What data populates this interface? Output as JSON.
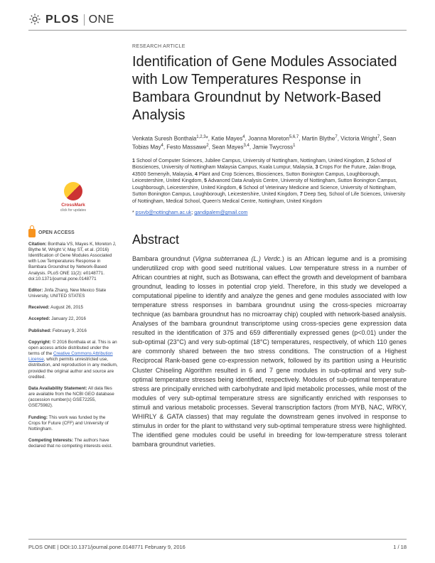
{
  "header": {
    "logo_prefix": "PLOS",
    "logo_suffix": "ONE"
  },
  "article_type": "RESEARCH ARTICLE",
  "title": "Identification of Gene Modules Associated with Low Temperatures Response in Bambara Groundnut by Network-Based Analysis",
  "authors_html": "Venkata Suresh Bonthala<sup>1,2,3</sup>*, Katie Mayes<sup>4</sup>, Joanna Moreton<sup>5,6,7</sup>, Martin Blythe<sup>7</sup>, Victoria Wright<sup>7</sup>, Sean Tobias May<sup>4</sup>, Festo Massawe<sup>2</sup>, Sean Mayes<sup>3,4</sup>, Jamie Twycross<sup>1</sup>",
  "affiliations_html": "<b>1</b> School of Computer Sciences, Jubilee Campus, University of Nottingham, Nottingham, United Kingdom, <b>2</b> School of Biosciences, University of Nottingham Malaysia Campus, Kuala Lumpur, Malaysia, <b>3</b> Crops For the Future, Jalan Broga, 43500 Semenyih, Malaysia, <b>4</b> Plant and Crop Sciences, Biosciences, Sutton Bonington Campus, Loughborough, Leicestershire, United Kingdom, <b>5</b> Advanced Data Analysis Centre, University of Nottingham, Sutton Bonington Campus, Loughborough, Leicestershire, United Kingdom, <b>6</b> School of Veterinary Medicine and Science, University of Nottingham, Sutton Bonington Campus, Loughborough, Leicestershire, United Kingdom, <b>7</b> Deep Seq, School of Life Sciences, University of Nottingham, Medical School, Queen's Medical Centre, Nottingham, United Kingdom",
  "email_prefix": "* ",
  "email1": "psxvb@nottingham.ac.uk",
  "email_sep": "; ",
  "email2": "gandipalem@gmail.com",
  "abstract_heading": "Abstract",
  "abstract_html": "Bambara groundnut (<i>Vigna subterranea (L.) Verdc.</i>) is an African legume and is a promising underutilized crop with good seed nutritional values. Low temperature stress in a number of African countries at night, such as Botswana, can effect the growth and development of bambara groundnut, leading to losses in potential crop yield. Therefore, in this study we developed a computational pipeline to identify and analyze the genes and gene modules associated with low temperature stress responses in bambara groundnut using the cross-species microarray technique (as bambara groundnut has no microarray chip) coupled with network-based analysis. Analyses of the bambara groundnut transcriptome using cross-species gene expression data resulted in the identification of 375 and 659 differentially expressed genes (p<0.01) under the sub-optimal (23°C) and very sub-optimal (18°C) temperatures, respectively, of which 110 genes are commonly shared between the two stress conditions. The construction of a Highest Reciprocal Rank-based gene co-expression network, followed by its partition using a Heuristic Cluster Chiseling Algorithm resulted in 6 and 7 gene modules in sub-optimal and very sub-optimal temperature stresses being identified, respectively. Modules of sub-optimal temperature stress are principally enriched with carbohydrate and lipid metabolic processes, while most of the modules of very sub-optimal temperature stress are significantly enriched with responses to stimuli and various metabolic processes. Several transcription factors (from MYB, NAC, WRKY, WHIRLY & GATA classes) that may regulate the downstream genes involved in response to stimulus in order for the plant to withstand very sub-optimal temperature stress were highlighted. The identified gene modules could be useful in breeding for low-temperature stress tolerant bambara groundnut varieties.",
  "crossmark": {
    "line1": "CrossMark",
    "line2": "click for updates"
  },
  "open_access": "OPEN ACCESS",
  "citation": "<b>Citation:</b> Bonthala VS, Mayes K, Moreton J, Blythe M, Wright V, May ST, et al. (2016) Identification of Gene Modules Associated with Low Temperatures Response in Bambara Groundnut by Network-Based Analysis. PLoS ONE 11(2): e0148771. doi:10.1371/journal.pone.0148771",
  "editor": "<b>Editor:</b> Jinfa Zhang, New Mexico State University, UNITED STATES",
  "received": "<b>Received:</b> August 26, 2015",
  "accepted": "<b>Accepted:</b> January 22, 2016",
  "published": "<b>Published:</b> February 9, 2016",
  "copyright": "<b>Copyright:</b> © 2016 Bonthala et al. This is an open access article distributed under the terms of the <a href='#'>Creative Commons Attribution License</a>, which permits unrestricted use, distribution, and reproduction in any medium, provided the original author and source are credited.",
  "data_avail": "<b>Data Availability Statement:</b> All data files are available from the NCBI GEO database (accession number(s) GSE72255, GSE75982).",
  "funding": "<b>Funding:</b> This work was funded by the Crops for Future (CFF) and University of Nottingham.",
  "competing": "<b>Competing Interests:</b> The authors have declared that no competing interests exist.",
  "footer": {
    "left": "PLOS ONE | DOI:10.1371/journal.pone.0148771    February 9, 2016",
    "right": "1 / 18"
  }
}
